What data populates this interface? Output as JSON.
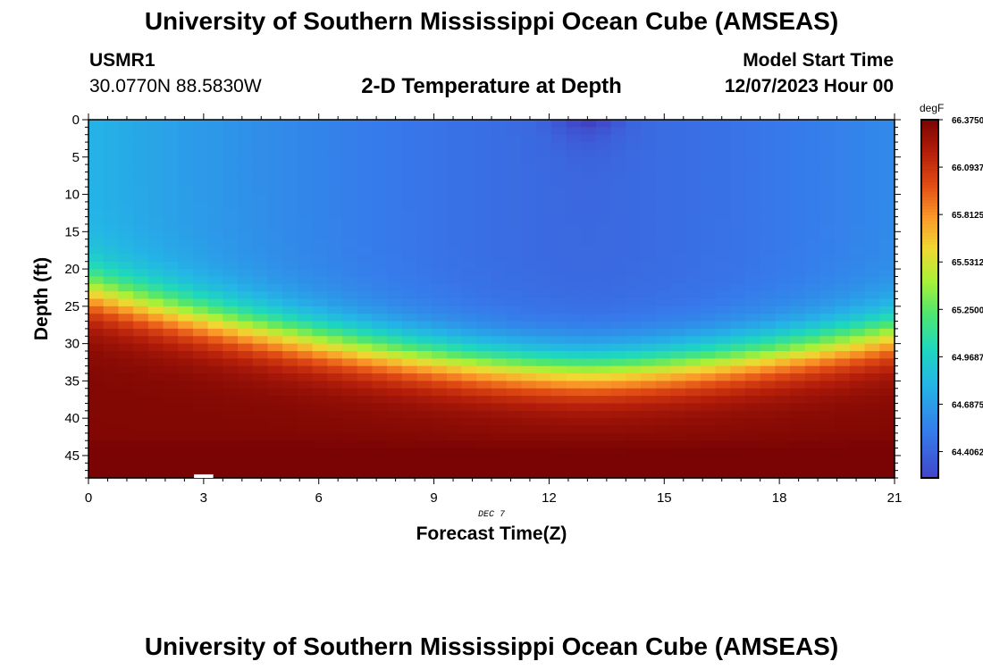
{
  "header": {
    "title": "University of Southern Mississippi Ocean Cube (AMSEAS)",
    "station_id": "USMR1",
    "station_coords": "30.0770N  88.5830W",
    "subtitle": "2-D Temperature at Depth",
    "model_start_label": "Model Start Time",
    "model_start_value": "12/07/2023 Hour 00"
  },
  "footer": {
    "title": "University of Southern Mississippi Ocean Cube (AMSEAS)"
  },
  "chart_data": {
    "type": "heatmap",
    "title": "2-D Temperature at Depth",
    "xlabel": "Forecast Time(Z)",
    "ylabel": "Depth (ft)",
    "date_label": "DEC 7",
    "xlim": [
      0,
      21
    ],
    "ylim": [
      48,
      0
    ],
    "x_ticks": [
      0,
      3,
      6,
      9,
      12,
      15,
      18,
      21
    ],
    "y_ticks": [
      0,
      5,
      10,
      15,
      20,
      25,
      30,
      35,
      40,
      45
    ],
    "value_unit": "degF",
    "colorbar_range": [
      64.25,
      66.375
    ],
    "colorbar_ticks": [
      "66.3750",
      "66.0937",
      "65.8125",
      "65.5312",
      "65.2500",
      "64.9687",
      "64.6875",
      "64.4062"
    ],
    "field_description": "Warm water (about 66 degF) below roughly 38 ft across all hours; cooler water (about 64.3-64.7 degF) in the upper column, coolest near the surface around 12-14Z; upper layer warms toward 64.8 degF at 0Z and 21Z."
  }
}
